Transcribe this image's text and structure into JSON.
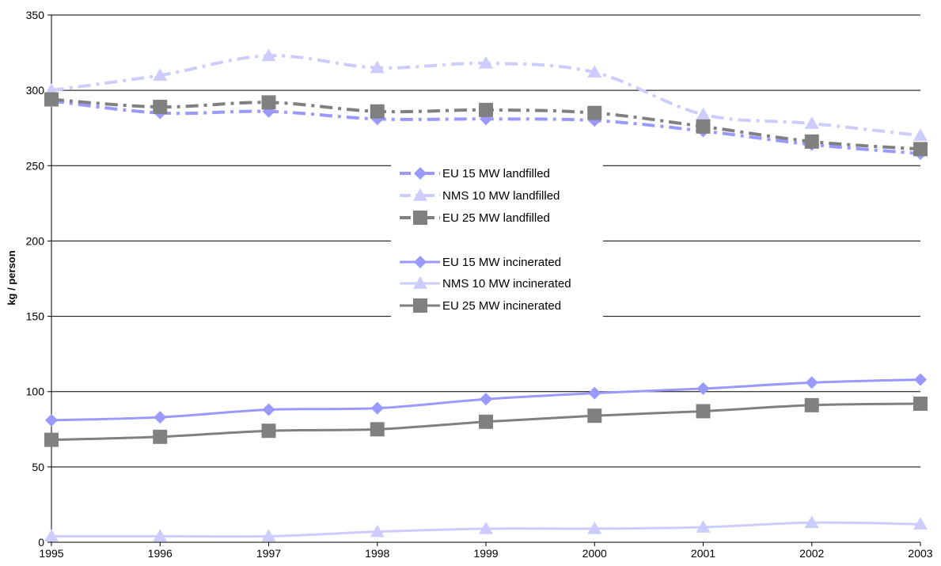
{
  "chart_data": {
    "type": "line",
    "title": "",
    "xlabel": "",
    "ylabel": "kg / person",
    "x": [
      "1995",
      "1996",
      "1997",
      "1998",
      "1999",
      "2000",
      "2001",
      "2002",
      "2003"
    ],
    "ylim": [
      0,
      350
    ],
    "yticks": [
      0,
      50,
      100,
      150,
      200,
      250,
      300,
      350
    ],
    "grid": "horizontal",
    "legend_position": "center",
    "series": [
      {
        "name": "EU 15 MW landfilled",
        "color": "#9999ff",
        "marker": "diamond",
        "dash": "dashdot",
        "smooth": true,
        "values": [
          293,
          285,
          286,
          281,
          281,
          280,
          273,
          264,
          258
        ]
      },
      {
        "name": "NMS 10 MW landfilled",
        "color": "#ccccff",
        "marker": "triangle",
        "dash": "dashdot",
        "smooth": true,
        "values": [
          300,
          310,
          323,
          315,
          318,
          312,
          284,
          278,
          270
        ]
      },
      {
        "name": "EU 25 MW landfilled",
        "color": "#808080",
        "marker": "square",
        "dash": "dashdot",
        "smooth": true,
        "values": [
          294,
          289,
          292,
          286,
          287,
          285,
          276,
          266,
          261
        ]
      },
      {
        "name": "EU 15 MW incinerated",
        "color": "#9999ff",
        "marker": "diamond",
        "dash": "solid",
        "smooth": true,
        "values": [
          81,
          83,
          88,
          89,
          95,
          99,
          102,
          106,
          108
        ]
      },
      {
        "name": "NMS 10 MW incinerated",
        "color": "#ccccff",
        "marker": "triangle",
        "dash": "solid",
        "smooth": true,
        "values": [
          4,
          4,
          4,
          7,
          9,
          9,
          10,
          13,
          12
        ]
      },
      {
        "name": "EU 25 MW incinerated",
        "color": "#808080",
        "marker": "square",
        "dash": "solid",
        "smooth": true,
        "values": [
          68,
          70,
          74,
          75,
          80,
          84,
          87,
          91,
          92
        ]
      }
    ]
  }
}
